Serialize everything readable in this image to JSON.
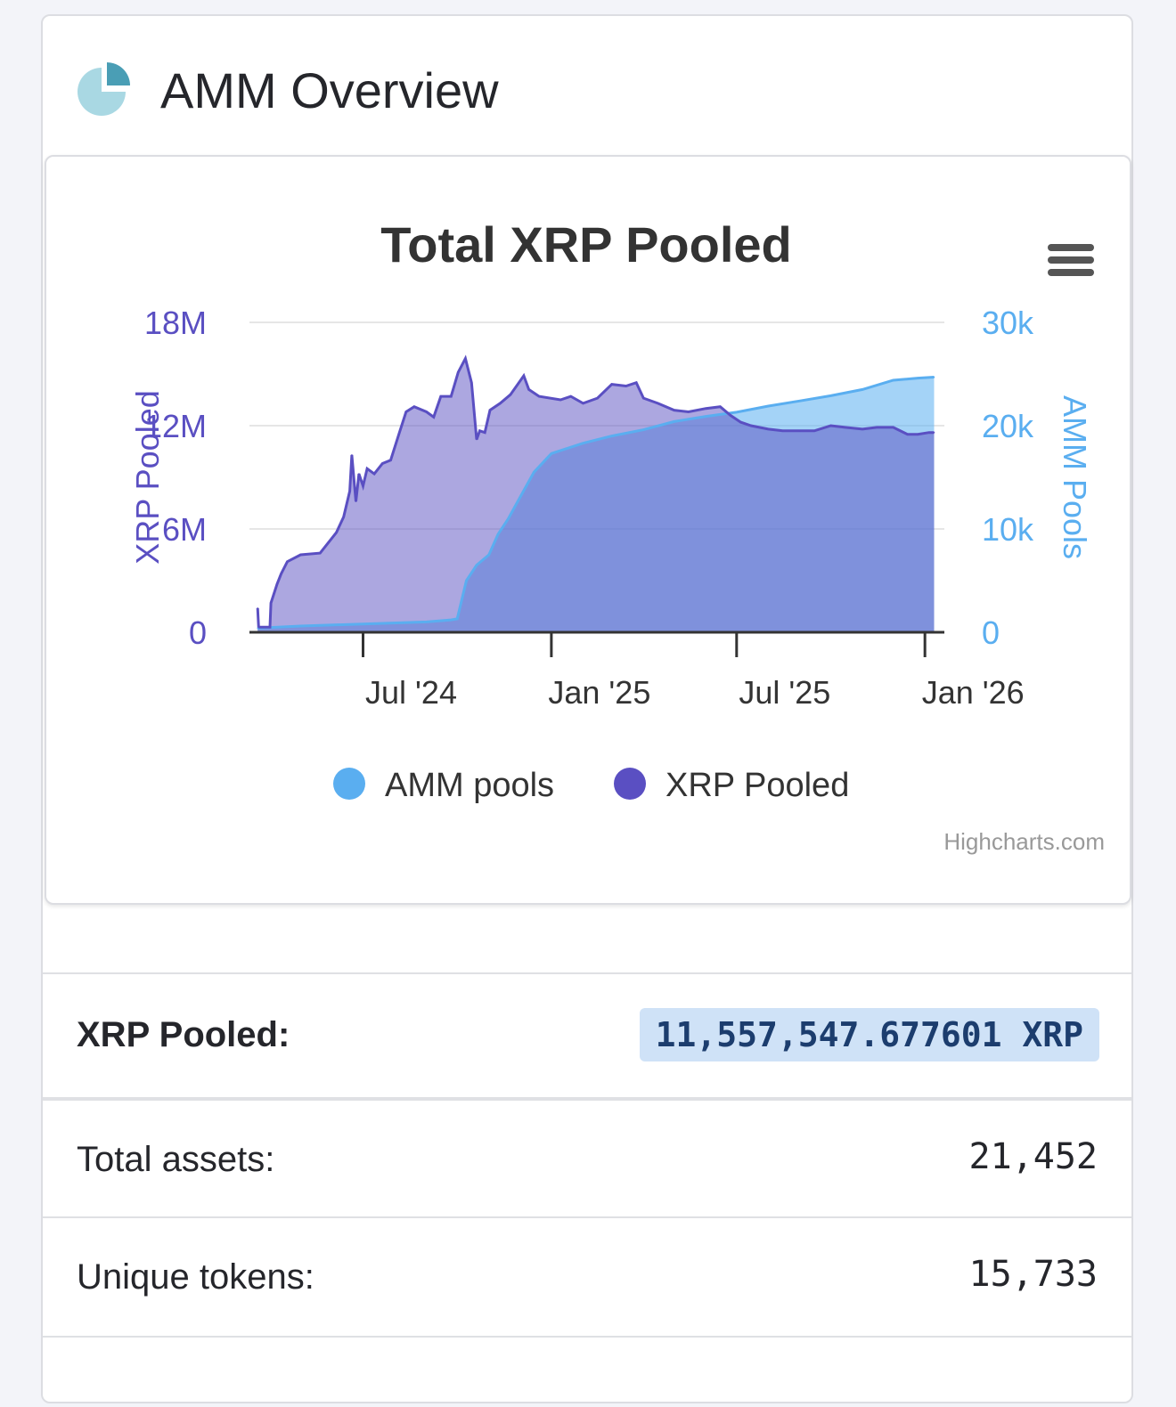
{
  "header": {
    "title": "AMM Overview",
    "icon": "pie-chart-icon"
  },
  "chart": {
    "menu_icon": "hamburger-menu-icon",
    "credit": "Highcharts.com"
  },
  "chart_data": {
    "type": "area",
    "title": "Total XRP Pooled",
    "x_tick_labels": [
      "Jul '24",
      "Jan '25",
      "Jul '25",
      "Jan '26"
    ],
    "left_axis": {
      "title": "XRP Pooled",
      "ticks": [
        "0",
        "6M",
        "12M",
        "18M"
      ],
      "range": [
        0,
        18000000
      ]
    },
    "right_axis": {
      "title": "AMM Pools",
      "ticks": [
        "0",
        "10k",
        "20k",
        "30k"
      ],
      "range": [
        0,
        30000
      ]
    },
    "legend": {
      "placement": "bottom",
      "items": [
        "AMM pools",
        "XRP Pooled"
      ]
    },
    "grid": true,
    "series": [
      {
        "name": "XRP Pooled",
        "axis": "left",
        "color": "#5a4fc2",
        "points": [
          [
            "2024-03-20",
            1400000
          ],
          [
            "2024-03-21",
            300000
          ],
          [
            "2024-04-01",
            300000
          ],
          [
            "2024-04-02",
            1700000
          ],
          [
            "2024-04-08",
            2800000
          ],
          [
            "2024-04-12",
            3400000
          ],
          [
            "2024-04-18",
            4100000
          ],
          [
            "2024-05-01",
            4500000
          ],
          [
            "2024-05-20",
            4600000
          ],
          [
            "2024-06-05",
            5800000
          ],
          [
            "2024-06-12",
            6700000
          ],
          [
            "2024-06-18",
            8200000
          ],
          [
            "2024-06-20",
            10300000
          ],
          [
            "2024-06-24",
            7600000
          ],
          [
            "2024-06-27",
            9200000
          ],
          [
            "2024-07-01",
            8500000
          ],
          [
            "2024-07-05",
            9500000
          ],
          [
            "2024-07-12",
            9200000
          ],
          [
            "2024-07-20",
            9800000
          ],
          [
            "2024-07-28",
            10000000
          ],
          [
            "2024-08-05",
            11500000
          ],
          [
            "2024-08-12",
            12800000
          ],
          [
            "2024-08-20",
            13100000
          ],
          [
            "2024-09-01",
            12800000
          ],
          [
            "2024-09-08",
            12500000
          ],
          [
            "2024-09-15",
            13700000
          ],
          [
            "2024-09-25",
            13700000
          ],
          [
            "2024-10-02",
            15100000
          ],
          [
            "2024-10-09",
            15900000
          ],
          [
            "2024-10-15",
            14500000
          ],
          [
            "2024-10-20",
            11200000
          ],
          [
            "2024-10-23",
            11700000
          ],
          [
            "2024-10-28",
            11600000
          ],
          [
            "2024-11-02",
            12900000
          ],
          [
            "2024-11-12",
            13300000
          ],
          [
            "2024-11-22",
            13800000
          ],
          [
            "2024-12-05",
            14900000
          ],
          [
            "2024-12-10",
            14100000
          ],
          [
            "2024-12-20",
            13700000
          ],
          [
            "2025-01-10",
            13500000
          ],
          [
            "2025-01-20",
            13700000
          ],
          [
            "2025-02-01",
            13300000
          ],
          [
            "2025-02-15",
            13600000
          ],
          [
            "2025-03-01",
            14400000
          ],
          [
            "2025-03-15",
            14300000
          ],
          [
            "2025-03-25",
            14500000
          ],
          [
            "2025-04-01",
            13600000
          ],
          [
            "2025-04-15",
            13300000
          ],
          [
            "2025-05-01",
            12900000
          ],
          [
            "2025-05-15",
            12800000
          ],
          [
            "2025-06-01",
            13000000
          ],
          [
            "2025-06-15",
            13100000
          ],
          [
            "2025-06-25",
            12600000
          ],
          [
            "2025-07-05",
            12200000
          ],
          [
            "2025-07-15",
            12000000
          ],
          [
            "2025-08-01",
            11800000
          ],
          [
            "2025-08-15",
            11700000
          ],
          [
            "2025-09-01",
            11700000
          ],
          [
            "2025-09-15",
            11700000
          ],
          [
            "2025-10-01",
            12000000
          ],
          [
            "2025-10-15",
            11900000
          ],
          [
            "2025-11-01",
            11800000
          ],
          [
            "2025-11-15",
            11900000
          ],
          [
            "2025-12-01",
            11900000
          ],
          [
            "2025-12-15",
            11500000
          ],
          [
            "2025-12-25",
            11500000
          ],
          [
            "2026-01-05",
            11600000
          ],
          [
            "2026-01-10",
            11600000
          ]
        ]
      },
      {
        "name": "AMM pools",
        "axis": "right",
        "color": "#5aaef0",
        "points": [
          [
            "2024-03-20",
            400
          ],
          [
            "2024-05-01",
            600
          ],
          [
            "2024-07-01",
            800
          ],
          [
            "2024-09-01",
            1000
          ],
          [
            "2024-09-25",
            1200
          ],
          [
            "2024-10-01",
            1300
          ],
          [
            "2024-10-10",
            5000
          ],
          [
            "2024-10-20",
            6500
          ],
          [
            "2024-11-01",
            7500
          ],
          [
            "2024-11-10",
            9500
          ],
          [
            "2024-11-20",
            11000
          ],
          [
            "2024-12-01",
            13000
          ],
          [
            "2024-12-15",
            15500
          ],
          [
            "2025-01-01",
            17300
          ],
          [
            "2025-02-01",
            18300
          ],
          [
            "2025-03-01",
            19000
          ],
          [
            "2025-04-01",
            19600
          ],
          [
            "2025-05-01",
            20400
          ],
          [
            "2025-06-01",
            20900
          ],
          [
            "2025-07-01",
            21300
          ],
          [
            "2025-08-01",
            21900
          ],
          [
            "2025-09-01",
            22400
          ],
          [
            "2025-10-01",
            22900
          ],
          [
            "2025-11-01",
            23500
          ],
          [
            "2025-12-01",
            24400
          ],
          [
            "2025-12-25",
            24600
          ],
          [
            "2026-01-10",
            24700
          ]
        ]
      }
    ]
  },
  "stats": {
    "xrp_pooled_label": "XRP Pooled:",
    "xrp_pooled_value": "11,557,547.677601 XRP",
    "total_assets_label": "Total assets:",
    "total_assets_value": "21,452",
    "unique_tokens_label": "Unique tokens:",
    "unique_tokens_value": "15,733"
  }
}
